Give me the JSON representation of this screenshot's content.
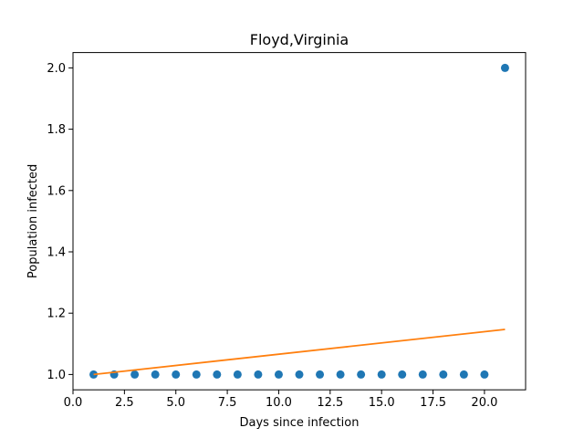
{
  "chart_data": {
    "type": "scatter",
    "title": "Floyd,Virginia",
    "xlabel": "Days since infection",
    "ylabel": "Population infected",
    "xlim": [
      0,
      22
    ],
    "ylim": [
      0.95,
      2.05
    ],
    "grid": false,
    "x_ticks": [
      {
        "value": 0,
        "label": "0.0"
      },
      {
        "value": 2.5,
        "label": "2.5"
      },
      {
        "value": 5,
        "label": "5.0"
      },
      {
        "value": 7.5,
        "label": "7.5"
      },
      {
        "value": 10,
        "label": "10.0"
      },
      {
        "value": 12.5,
        "label": "12.5"
      },
      {
        "value": 15,
        "label": "15.0"
      },
      {
        "value": 17.5,
        "label": "17.5"
      },
      {
        "value": 20,
        "label": "20.0"
      }
    ],
    "y_ticks": [
      {
        "value": 1.0,
        "label": "1.0"
      },
      {
        "value": 1.2,
        "label": "1.2"
      },
      {
        "value": 1.4,
        "label": "1.4"
      },
      {
        "value": 1.6,
        "label": "1.6"
      },
      {
        "value": 1.8,
        "label": "1.8"
      },
      {
        "value": 2.0,
        "label": "2.0"
      }
    ],
    "series": [
      {
        "kind": "scatter",
        "color": "#1f77b4",
        "x": [
          1,
          2,
          3,
          4,
          5,
          6,
          7,
          8,
          9,
          10,
          11,
          12,
          13,
          14,
          15,
          16,
          17,
          18,
          19,
          20,
          21
        ],
        "y": [
          1,
          1,
          1,
          1,
          1,
          1,
          1,
          1,
          1,
          1,
          1,
          1,
          1,
          1,
          1,
          1,
          1,
          1,
          1,
          1,
          2
        ]
      },
      {
        "kind": "line",
        "color": "#ff7f0e",
        "x": [
          1,
          21
        ],
        "y": [
          1.0,
          1.147
        ]
      }
    ]
  }
}
